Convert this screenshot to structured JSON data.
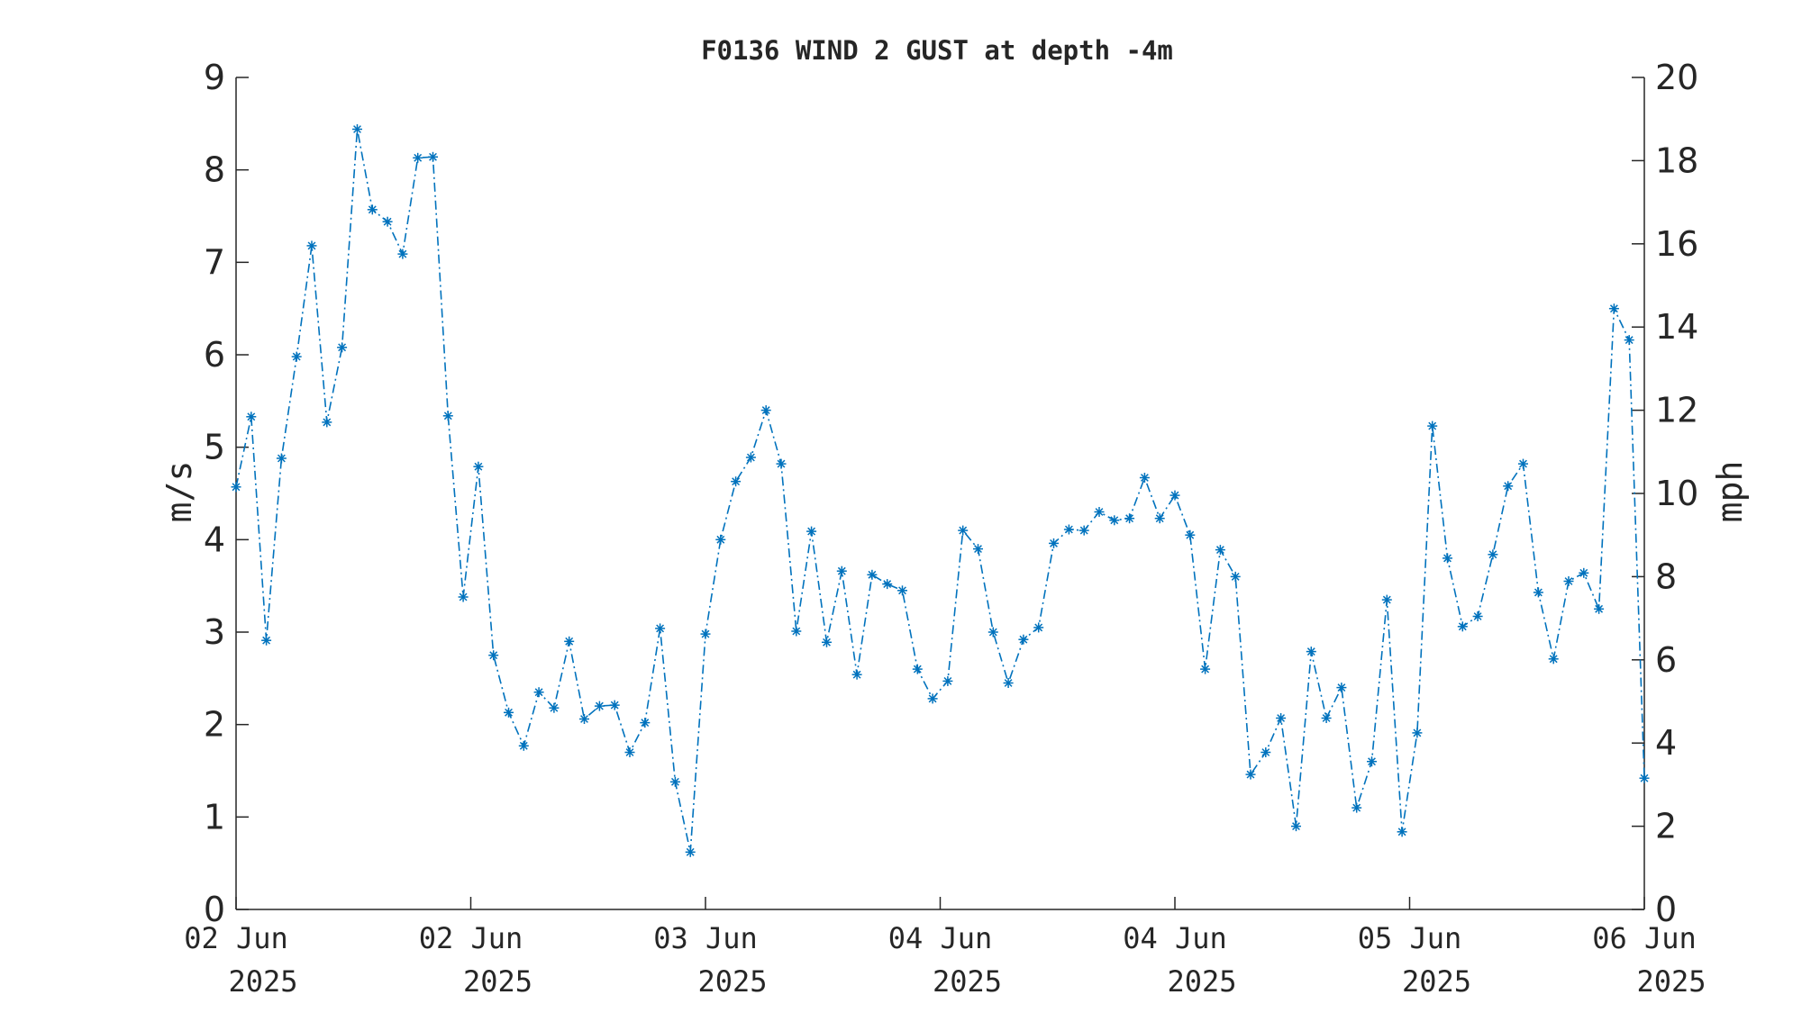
{
  "chart_data": {
    "type": "line",
    "title": "F0136 WIND 2 GUST at depth -4m",
    "ylabel": "m/s",
    "ylabel_right": "mph",
    "ylim": [
      0,
      9
    ],
    "ylim_right": [
      0,
      20
    ],
    "yticks": [
      "0",
      "1",
      "2",
      "3",
      "4",
      "5",
      "6",
      "7",
      "8",
      "9"
    ],
    "yticks_right": [
      "0",
      "2",
      "4",
      "6",
      "8",
      "10",
      "12",
      "14",
      "16",
      "18",
      "20"
    ],
    "xticks": [
      {
        "day": "02 Jun",
        "year": "2025"
      },
      {
        "day": "02 Jun",
        "year": "2025"
      },
      {
        "day": "03 Jun",
        "year": "2025"
      },
      {
        "day": "04 Jun",
        "year": "2025"
      },
      {
        "day": "04 Jun",
        "year": "2025"
      },
      {
        "day": "05 Jun",
        "year": "2025"
      },
      {
        "day": "06 Jun",
        "year": "2025"
      }
    ],
    "line_color": "#0072BD",
    "line_style": "dash-dot",
    "marker": "asterisk",
    "grid": false,
    "legend": "none",
    "series": [
      {
        "values": [
          4.57,
          5.33,
          2.91,
          4.88,
          5.98,
          7.18,
          5.27,
          6.08,
          8.44,
          7.57,
          7.44,
          7.09,
          8.13,
          8.14,
          5.34,
          3.38,
          4.79,
          2.75,
          2.13,
          1.77,
          2.35,
          2.18,
          2.9,
          2.06,
          2.2,
          2.21,
          1.7,
          2.02,
          3.04,
          1.38,
          0.62,
          2.98,
          4.0,
          4.63,
          4.89,
          5.4,
          4.82,
          3.01,
          4.09,
          2.89,
          3.66,
          2.54,
          3.62,
          3.52,
          3.45,
          2.6,
          2.28,
          2.47,
          4.1,
          3.9,
          3.0,
          2.45,
          2.92,
          3.05,
          3.96,
          4.11,
          4.1,
          4.3,
          4.21,
          4.23,
          4.67,
          4.23,
          4.48,
          4.05,
          2.6,
          3.89,
          3.6,
          1.46,
          1.7,
          2.07,
          0.9,
          2.79,
          2.07,
          2.4,
          1.1,
          1.6,
          3.35,
          0.84,
          1.91,
          5.23,
          3.8,
          3.06,
          3.17,
          3.84,
          4.58,
          4.82,
          3.43,
          2.71,
          3.55,
          3.64,
          3.25,
          6.5,
          6.16,
          1.42
        ]
      }
    ]
  }
}
